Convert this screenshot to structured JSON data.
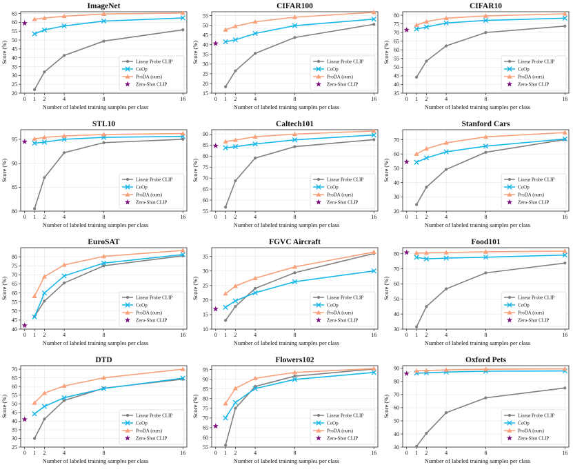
{
  "x_ticks": [
    0,
    1,
    2,
    4,
    8,
    16
  ],
  "xlabel": "Number of labeled training samples per class",
  "ylabel": "Score (%)",
  "legend": [
    "Linear Probe CLIP",
    "CoOp",
    "ProDA (ours)",
    "Zero-Shot CLIP"
  ],
  "colors": {
    "linear": "#7f7f7f",
    "coop": "#17b6e8",
    "proda": "#f7a07a",
    "zeroshot": "#7b0f7b"
  },
  "chart_data": [
    {
      "type": "line",
      "title": "ImageNet",
      "ylim": [
        20,
        66
      ],
      "yticks": [
        20,
        25,
        30,
        35,
        40,
        45,
        50,
        55,
        60,
        65
      ],
      "x": [
        1,
        2,
        4,
        8,
        16
      ],
      "zero_shot": 59.5,
      "series": [
        {
          "name": "Linear Probe CLIP",
          "values": [
            22,
            32,
            41.3,
            49.4,
            55.8
          ]
        },
        {
          "name": "CoOp",
          "values": [
            53.5,
            55.7,
            58,
            60.7,
            62.5
          ]
        },
        {
          "name": "ProDA (ours)",
          "values": [
            61.8,
            62.4,
            63.5,
            64.7,
            65.3
          ]
        }
      ]
    },
    {
      "type": "line",
      "title": "CIFAR100",
      "ylim": [
        15,
        57
      ],
      "yticks": [
        15,
        20,
        25,
        30,
        35,
        40,
        45,
        50,
        55
      ],
      "x": [
        1,
        2,
        4,
        8,
        16
      ],
      "zero_shot": 40.6,
      "series": [
        {
          "name": "Linear Probe CLIP",
          "values": [
            18.3,
            26.5,
            35.5,
            43.7,
            50.5
          ]
        },
        {
          "name": "CoOp",
          "values": [
            41.5,
            42.5,
            45.8,
            49.8,
            53.2
          ]
        },
        {
          "name": "ProDA (ours)",
          "values": [
            47.7,
            49.5,
            51.8,
            54.2,
            56.7
          ]
        }
      ]
    },
    {
      "type": "line",
      "title": "CIFAR10",
      "ylim": [
        35,
        82
      ],
      "yticks": [
        35,
        40,
        45,
        50,
        55,
        60,
        65,
        70,
        75,
        80
      ],
      "x": [
        1,
        2,
        4,
        8,
        16
      ],
      "zero_shot": 71.5,
      "series": [
        {
          "name": "Linear Probe CLIP",
          "values": [
            44.2,
            53.5,
            62.3,
            70,
            73.7
          ]
        },
        {
          "name": "CoOp",
          "values": [
            72,
            73.2,
            75.5,
            77,
            78.3
          ]
        },
        {
          "name": "ProDA (ours)",
          "values": [
            74.3,
            76.3,
            78.3,
            79.6,
            80.8
          ]
        }
      ]
    },
    {
      "type": "line",
      "title": "STL10",
      "ylim": [
        80,
        97
      ],
      "yticks": [
        80,
        85,
        90,
        95
      ],
      "x": [
        1,
        2,
        4,
        8,
        16
      ],
      "zero_shot": 94.5,
      "series": [
        {
          "name": "Linear Probe CLIP",
          "values": [
            80.5,
            87,
            92.2,
            94.3,
            95
          ]
        },
        {
          "name": "CoOp",
          "values": [
            94.2,
            94.4,
            95,
            95.4,
            95.6
          ]
        },
        {
          "name": "ProDA (ours)",
          "values": [
            95.1,
            95.4,
            95.7,
            96,
            96.2
          ]
        }
      ]
    },
    {
      "type": "line",
      "title": "Caltech101",
      "ylim": [
        55,
        92
      ],
      "yticks": [
        55,
        60,
        65,
        70,
        75,
        80,
        85,
        90
      ],
      "x": [
        1,
        2,
        4,
        8,
        16
      ],
      "zero_shot": 84.7,
      "series": [
        {
          "name": "Linear Probe CLIP",
          "values": [
            56.8,
            68.8,
            79.1,
            84.3,
            87.5
          ]
        },
        {
          "name": "CoOp",
          "values": [
            83.8,
            84.3,
            85.5,
            87.4,
            89.6
          ]
        },
        {
          "name": "ProDA (ours)",
          "values": [
            86.6,
            87.3,
            88.8,
            90,
            91.4
          ]
        }
      ]
    },
    {
      "type": "line",
      "title": "Stanford Cars",
      "ylim": [
        20,
        77
      ],
      "yticks": [
        20,
        30,
        40,
        50,
        60,
        70
      ],
      "x": [
        1,
        2,
        4,
        8,
        16
      ],
      "zero_shot": 54.5,
      "series": [
        {
          "name": "Linear Probe CLIP",
          "values": [
            24.6,
            36.8,
            49.2,
            61.2,
            70.1
          ]
        },
        {
          "name": "CoOp",
          "values": [
            54.2,
            57.2,
            61.5,
            65.5,
            70.5
          ]
        },
        {
          "name": "ProDA (ours)",
          "values": [
            60,
            63.7,
            67.8,
            72,
            75
          ]
        }
      ]
    },
    {
      "type": "line",
      "title": "EuroSAT",
      "ylim": [
        40,
        85
      ],
      "yticks": [
        40,
        45,
        50,
        55,
        60,
        65,
        70,
        75,
        80
      ],
      "x": [
        1,
        2,
        4,
        8,
        16
      ],
      "zero_shot": 42,
      "series": [
        {
          "name": "Linear Probe CLIP",
          "values": [
            47,
            55.5,
            65.5,
            75,
            80.5
          ]
        },
        {
          "name": "CoOp",
          "values": [
            46.8,
            60,
            69.4,
            76.5,
            81.2
          ]
        },
        {
          "name": "ProDA (ours)",
          "values": [
            58.2,
            69,
            75.5,
            80.2,
            83.5
          ]
        }
      ]
    },
    {
      "type": "line",
      "title": "FGVC Aircraft",
      "ylim": [
        10,
        38
      ],
      "yticks": [
        10,
        15,
        20,
        25,
        30,
        35
      ],
      "x": [
        1,
        2,
        4,
        8,
        16
      ],
      "zero_shot": 16.9,
      "series": [
        {
          "name": "Linear Probe CLIP",
          "values": [
            13,
            17.8,
            24,
            29.4,
            36
          ]
        },
        {
          "name": "CoOp",
          "values": [
            17.5,
            19.7,
            22.5,
            26.3,
            30
          ]
        },
        {
          "name": "ProDA (ours)",
          "values": [
            22.2,
            24.8,
            27.5,
            31.4,
            36.5
          ]
        }
      ]
    },
    {
      "type": "line",
      "title": "Food101",
      "ylim": [
        30,
        84
      ],
      "yticks": [
        30,
        40,
        50,
        60,
        70,
        80
      ],
      "x": [
        1,
        2,
        4,
        8,
        16
      ],
      "zero_shot": 80.8,
      "series": [
        {
          "name": "Linear Probe CLIP",
          "values": [
            31.5,
            45,
            56.7,
            67.3,
            73.8
          ]
        },
        {
          "name": "CoOp",
          "values": [
            77.6,
            76.6,
            77.1,
            77.7,
            79.1
          ]
        },
        {
          "name": "ProDA (ours)",
          "values": [
            80.5,
            80.6,
            80.8,
            81.3,
            81.7
          ]
        }
      ]
    },
    {
      "type": "line",
      "title": "DTD",
      "ylim": [
        25,
        72
      ],
      "yticks": [
        25,
        30,
        35,
        40,
        45,
        50,
        55,
        60,
        65,
        70
      ],
      "x": [
        1,
        2,
        4,
        8,
        16
      ],
      "zero_shot": 41,
      "series": [
        {
          "name": "Linear Probe CLIP",
          "values": [
            30,
            41.2,
            51.9,
            59,
            64.2
          ]
        },
        {
          "name": "CoOp",
          "values": [
            44.2,
            48.5,
            53.5,
            58.8,
            64.8
          ]
        },
        {
          "name": "ProDA (ours)",
          "values": [
            50.5,
            56.2,
            60.3,
            65,
            70
          ]
        }
      ]
    },
    {
      "type": "line",
      "title": "Flowers102",
      "ylim": [
        55,
        97
      ],
      "yticks": [
        55,
        60,
        65,
        70,
        75,
        80,
        85,
        90,
        95
      ],
      "x": [
        1,
        2,
        4,
        8,
        16
      ],
      "zero_shot": 65.8,
      "series": [
        {
          "name": "Linear Probe CLIP",
          "values": [
            56,
            75,
            86.3,
            91.6,
            95.3
          ]
        },
        {
          "name": "CoOp",
          "values": [
            70,
            78,
            85.2,
            89.9,
            93.5
          ]
        },
        {
          "name": "ProDA (ours)",
          "values": [
            77.5,
            85.3,
            90.5,
            93.5,
            95.5
          ]
        }
      ]
    },
    {
      "type": "line",
      "title": "Oxford Pets",
      "ylim": [
        30,
        92
      ],
      "yticks": [
        30,
        40,
        50,
        60,
        70,
        80,
        90
      ],
      "x": [
        1,
        2,
        4,
        8,
        16
      ],
      "zero_shot": 86,
      "series": [
        {
          "name": "Linear Probe CLIP",
          "values": [
            30.5,
            40.5,
            56.2,
            67.5,
            75
          ]
        },
        {
          "name": "CoOp",
          "values": [
            86.3,
            86.5,
            87.2,
            87.8,
            88
          ]
        },
        {
          "name": "ProDA (ours)",
          "values": [
            88,
            88.3,
            88.8,
            89.3,
            89.6
          ]
        }
      ]
    }
  ]
}
